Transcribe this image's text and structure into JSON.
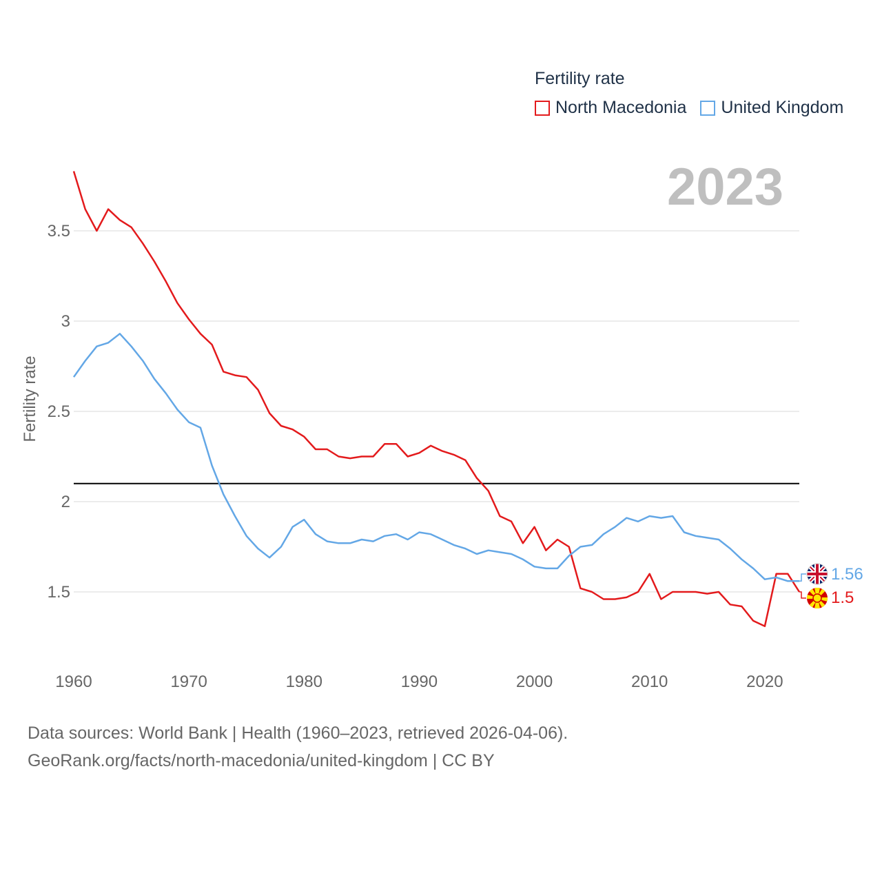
{
  "legend": {
    "title": "Fertility rate",
    "items": [
      {
        "label": "North Macedonia",
        "color": "#e31a1c"
      },
      {
        "label": "United Kingdom",
        "color": "#63a7e6"
      }
    ]
  },
  "year_display": "2023",
  "footer": {
    "line1": "Data sources: World Bank | Health (1960–2023, retrieved 2026-04-06).",
    "line2": "GeoRank.org/facts/north-macedonia/united-kingdom | CC BY"
  },
  "chart_data": {
    "type": "line",
    "title": "Fertility rate",
    "xlabel": "",
    "ylabel": "Fertility rate",
    "xlim": [
      1960,
      2023
    ],
    "ylim": [
      1.1,
      3.9
    ],
    "x_ticks": [
      1960,
      1970,
      1980,
      1990,
      2000,
      2010,
      2020
    ],
    "y_ticks": [
      {
        "value": 1.5,
        "label": "1.5"
      },
      {
        "value": 2.0,
        "label": "2"
      },
      {
        "value": 2.5,
        "label": "2.5"
      },
      {
        "value": 3.0,
        "label": "3"
      },
      {
        "value": 3.5,
        "label": "3.5"
      }
    ],
    "grid": true,
    "reference_line": {
      "value": 2.1,
      "color": "#000000"
    },
    "x": [
      1960,
      1961,
      1962,
      1963,
      1964,
      1965,
      1966,
      1967,
      1968,
      1969,
      1970,
      1971,
      1972,
      1973,
      1974,
      1975,
      1976,
      1977,
      1978,
      1979,
      1980,
      1981,
      1982,
      1983,
      1984,
      1985,
      1986,
      1987,
      1988,
      1989,
      1990,
      1991,
      1992,
      1993,
      1994,
      1995,
      1996,
      1997,
      1998,
      1999,
      2000,
      2001,
      2002,
      2003,
      2004,
      2005,
      2006,
      2007,
      2008,
      2009,
      2010,
      2011,
      2012,
      2013,
      2014,
      2015,
      2016,
      2017,
      2018,
      2019,
      2020,
      2021,
      2022,
      2023
    ],
    "series": [
      {
        "name": "North Macedonia",
        "color": "#e31a1c",
        "end_label": "1.5",
        "values": [
          3.83,
          3.62,
          3.5,
          3.62,
          3.56,
          3.52,
          3.43,
          3.33,
          3.22,
          3.1,
          3.01,
          2.93,
          2.87,
          2.72,
          2.7,
          2.69,
          2.62,
          2.49,
          2.42,
          2.4,
          2.36,
          2.29,
          2.29,
          2.25,
          2.24,
          2.25,
          2.25,
          2.32,
          2.32,
          2.25,
          2.27,
          2.31,
          2.28,
          2.26,
          2.23,
          2.13,
          2.06,
          1.92,
          1.89,
          1.77,
          1.86,
          1.73,
          1.79,
          1.75,
          1.52,
          1.5,
          1.46,
          1.46,
          1.47,
          1.5,
          1.6,
          1.46,
          1.5,
          1.5,
          1.5,
          1.49,
          1.5,
          1.43,
          1.42,
          1.34,
          1.31,
          1.6,
          1.6,
          1.5
        ]
      },
      {
        "name": "United Kingdom",
        "color": "#63a7e6",
        "end_label": "1.56",
        "values": [
          2.69,
          2.78,
          2.86,
          2.88,
          2.93,
          2.86,
          2.78,
          2.68,
          2.6,
          2.51,
          2.44,
          2.41,
          2.2,
          2.04,
          1.92,
          1.81,
          1.74,
          1.69,
          1.75,
          1.86,
          1.9,
          1.82,
          1.78,
          1.77,
          1.77,
          1.79,
          1.78,
          1.81,
          1.82,
          1.79,
          1.83,
          1.82,
          1.79,
          1.76,
          1.74,
          1.71,
          1.73,
          1.72,
          1.71,
          1.68,
          1.64,
          1.63,
          1.63,
          1.7,
          1.75,
          1.76,
          1.82,
          1.86,
          1.91,
          1.89,
          1.92,
          1.91,
          1.92,
          1.83,
          1.81,
          1.8,
          1.79,
          1.74,
          1.68,
          1.63,
          1.57,
          1.58,
          1.56,
          1.56
        ]
      }
    ]
  }
}
